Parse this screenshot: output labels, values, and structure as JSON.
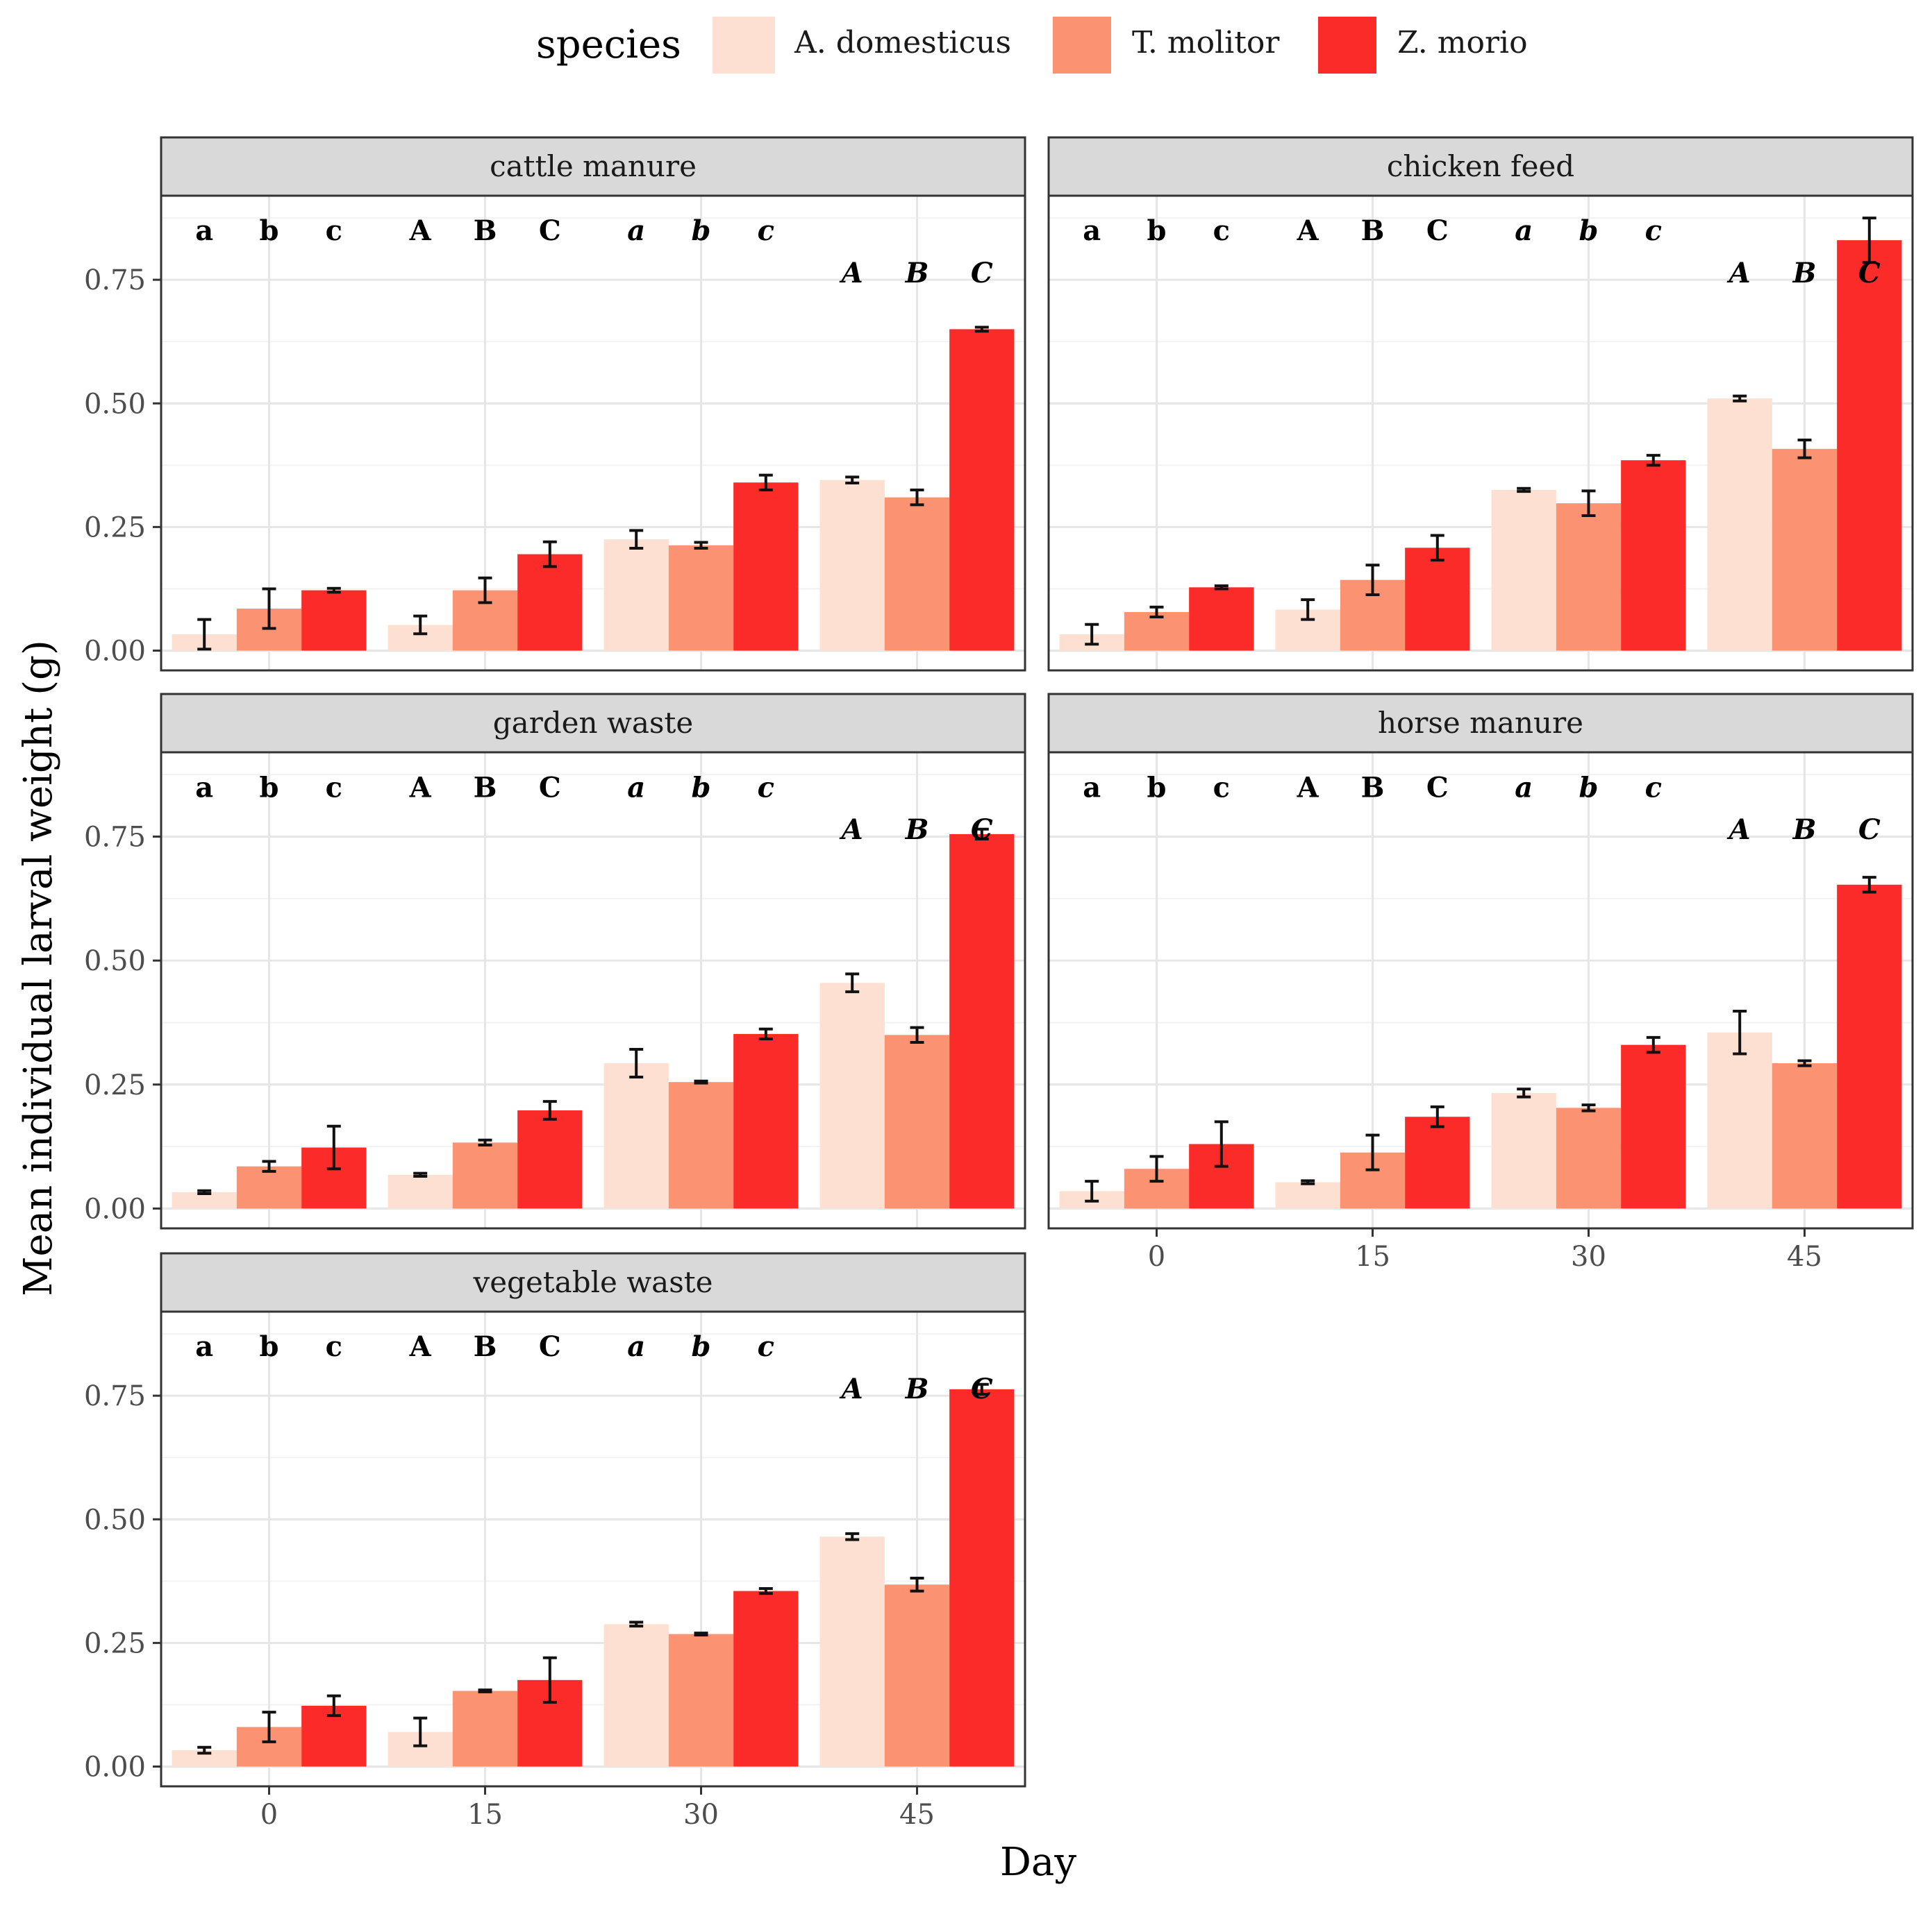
{
  "chart_data": {
    "type": "bar",
    "facet_by": "substrate",
    "xlabel": "Day",
    "ylabel": "Mean individual larval weight (g)",
    "legend": {
      "title": "species",
      "position": "top",
      "entries": [
        "A. domesticus",
        "T. molitor",
        "Z. morio"
      ]
    },
    "colors": [
      "#fde0d2",
      "#fb9272",
      "#fa2b28"
    ],
    "categories": [
      "0",
      "15",
      "30",
      "45"
    ],
    "y_ticks": [
      "0.00",
      "0.25",
      "0.50",
      "0.75"
    ],
    "y_tick_values": [
      0,
      0.25,
      0.5,
      0.75
    ],
    "ylim": [
      -0.04,
      0.92
    ],
    "grid": true,
    "panels": [
      {
        "title": "cattle manure",
        "series": [
          {
            "name": "A. domesticus",
            "values": [
              0.033,
              0.052,
              0.225,
              0.345
            ],
            "errors": [
              0.03,
              0.018,
              0.018,
              0.006
            ]
          },
          {
            "name": "T. molitor",
            "values": [
              0.085,
              0.122,
              0.213,
              0.31
            ],
            "errors": [
              0.04,
              0.025,
              0.006,
              0.015
            ]
          },
          {
            "name": "Z. morio",
            "values": [
              0.122,
              0.195,
              0.34,
              0.65
            ],
            "errors": [
              0.004,
              0.025,
              0.015,
              0.004
            ]
          }
        ],
        "sig_labels": [
          [
            "a",
            "b",
            "c"
          ],
          [
            "A",
            "B",
            "C"
          ],
          [
            "a",
            "b",
            "c"
          ],
          [
            "A",
            "B",
            "C"
          ]
        ]
      },
      {
        "title": "chicken feed",
        "series": [
          {
            "name": "A. domesticus",
            "values": [
              0.033,
              0.083,
              0.325,
              0.51
            ],
            "errors": [
              0.02,
              0.02,
              0.003,
              0.005
            ]
          },
          {
            "name": "T. molitor",
            "values": [
              0.078,
              0.143,
              0.298,
              0.408
            ],
            "errors": [
              0.01,
              0.03,
              0.025,
              0.018
            ]
          },
          {
            "name": "Z. morio",
            "values": [
              0.128,
              0.208,
              0.385,
              0.83
            ],
            "errors": [
              0.003,
              0.025,
              0.01,
              0.045
            ]
          }
        ],
        "sig_labels": [
          [
            "a",
            "b",
            "c"
          ],
          [
            "A",
            "B",
            "C"
          ],
          [
            "a",
            "b",
            "c"
          ],
          [
            "A",
            "B",
            "C"
          ]
        ]
      },
      {
        "title": "garden waste",
        "series": [
          {
            "name": "A. domesticus",
            "values": [
              0.033,
              0.068,
              0.293,
              0.455
            ],
            "errors": [
              0.003,
              0.003,
              0.028,
              0.018
            ]
          },
          {
            "name": "T. molitor",
            "values": [
              0.085,
              0.133,
              0.255,
              0.35
            ],
            "errors": [
              0.01,
              0.005,
              0.002,
              0.015
            ]
          },
          {
            "name": "Z. morio",
            "values": [
              0.123,
              0.198,
              0.352,
              0.755
            ],
            "errors": [
              0.043,
              0.018,
              0.01,
              0.01
            ]
          }
        ],
        "sig_labels": [
          [
            "a",
            "b",
            "c"
          ],
          [
            "A",
            "B",
            "C"
          ],
          [
            "a",
            "b",
            "c"
          ],
          [
            "A",
            "B",
            "C"
          ]
        ]
      },
      {
        "title": "horse manure",
        "series": [
          {
            "name": "A. domesticus",
            "values": [
              0.035,
              0.053,
              0.233,
              0.355
            ],
            "errors": [
              0.02,
              0.003,
              0.008,
              0.043
            ]
          },
          {
            "name": "T. molitor",
            "values": [
              0.08,
              0.113,
              0.203,
              0.293
            ],
            "errors": [
              0.025,
              0.035,
              0.006,
              0.005
            ]
          },
          {
            "name": "Z. morio",
            "values": [
              0.13,
              0.185,
              0.33,
              0.653
            ],
            "errors": [
              0.045,
              0.02,
              0.015,
              0.015
            ]
          }
        ],
        "sig_labels": [
          [
            "a",
            "b",
            "c"
          ],
          [
            "A",
            "B",
            "C"
          ],
          [
            "a",
            "b",
            "c"
          ],
          [
            "A",
            "B",
            "C"
          ]
        ]
      },
      {
        "title": "vegetable waste",
        "series": [
          {
            "name": "A. domesticus",
            "values": [
              0.033,
              0.07,
              0.288,
              0.465
            ],
            "errors": [
              0.006,
              0.028,
              0.004,
              0.006
            ]
          },
          {
            "name": "T. molitor",
            "values": [
              0.08,
              0.153,
              0.268,
              0.368
            ],
            "errors": [
              0.03,
              0.002,
              0.002,
              0.013
            ]
          },
          {
            "name": "Z. morio",
            "values": [
              0.123,
              0.175,
              0.355,
              0.763
            ],
            "errors": [
              0.02,
              0.045,
              0.005,
              0.01
            ]
          }
        ],
        "sig_labels": [
          [
            "a",
            "b",
            "c"
          ],
          [
            "A",
            "B",
            "C"
          ],
          [
            "a",
            "b",
            "c"
          ],
          [
            "A",
            "B",
            "C"
          ]
        ]
      }
    ]
  }
}
